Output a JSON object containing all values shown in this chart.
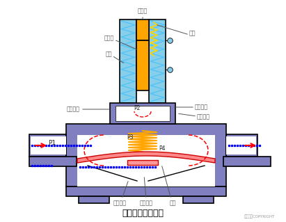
{
  "title": "管道联系式电磁阀",
  "copyright": "东方仿真COPYRIGHT",
  "bg_color": "#ffffff",
  "valve_body_color": "#8080c0",
  "coil_color": "#87CEEB",
  "plunger_color": "#FFA500",
  "spring_color_main": "#FFA500",
  "spring_color_pilot": "#FFD700",
  "flow_color_blue": "#0000FF",
  "flow_color_red": "#FF0000",
  "diaphragm_color": "#FF8888",
  "diaphragm_edge": "#CC0000",
  "label_color": "#555555",
  "labels": {
    "fixed_core": "定铁心",
    "moving_core": "动铁心",
    "coil": "线圈",
    "balance_channel": "平衡孔道",
    "pilot_seat": "导阀阀座",
    "pressure_channel": "泄压孔道",
    "p1": "P1",
    "p2": "P2",
    "p3": "P3",
    "p4": "P4",
    "main_seat": "主阀阀座",
    "main_core": "主阀阀芯",
    "diaphragm": "膜片",
    "spring": "弹簧"
  }
}
